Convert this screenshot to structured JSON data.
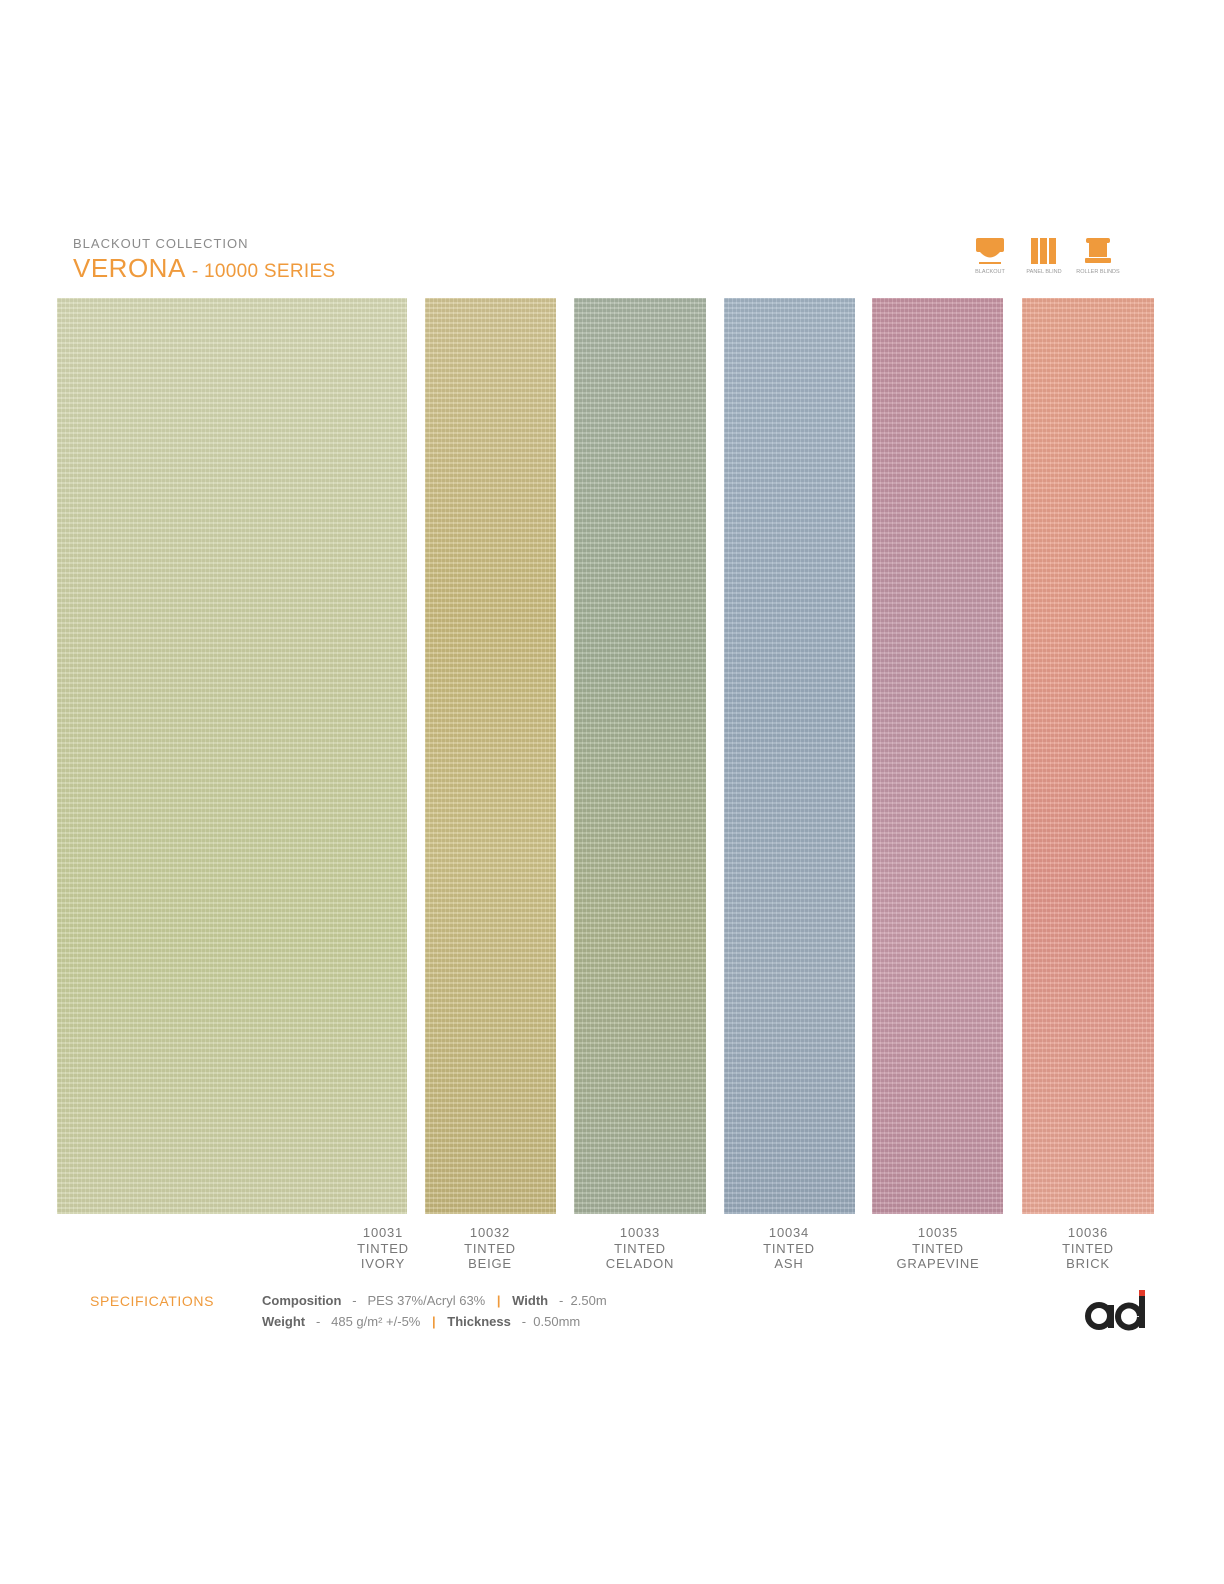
{
  "header": {
    "collection": "BLACKOUT  COLLECTION",
    "series_name": "VERONA",
    "series_code": "- 10000 SERIES"
  },
  "icons": [
    {
      "name": "blackout-icon",
      "label": "BLACKOUT"
    },
    {
      "name": "panel-blind-icon",
      "label": "PANEL BLIND"
    },
    {
      "name": "roller-blinds-icon",
      "label": "ROLLER BLINDS"
    }
  ],
  "swatches": [
    {
      "code": "10031",
      "line1": "TINTED",
      "line2": "IVORY",
      "color": "#cfd2a6"
    },
    {
      "code": "10032",
      "line1": "TINTED",
      "line2": "BEIGE",
      "color": "#cfc288"
    },
    {
      "code": "10033",
      "line1": "TINTED",
      "line2": "CELADON",
      "color": "#aeb9a0"
    },
    {
      "code": "10034",
      "line1": "TINTED",
      "line2": "ASH",
      "color": "#9fb0c1"
    },
    {
      "code": "10035",
      "line1": "TINTED",
      "line2": "GRAPEVINE",
      "color": "#c79aa7"
    },
    {
      "code": "10036",
      "line1": "TINTED",
      "line2": "BRICK",
      "color": "#e9a795"
    }
  ],
  "specs": {
    "title": "SPECIFICATIONS",
    "composition_label": "Composition",
    "composition_value": "PES 37%/Acryl 63%",
    "width_label": "Width",
    "width_value": "2.50m",
    "weight_label": "Weight",
    "weight_value": "485 g/m² +/-5%",
    "thickness_label": "Thickness",
    "thickness_value": "0.50mm"
  },
  "colors": {
    "accent": "#ef9a3c",
    "logo_dark": "#222222",
    "logo_red": "#e23a2a"
  }
}
